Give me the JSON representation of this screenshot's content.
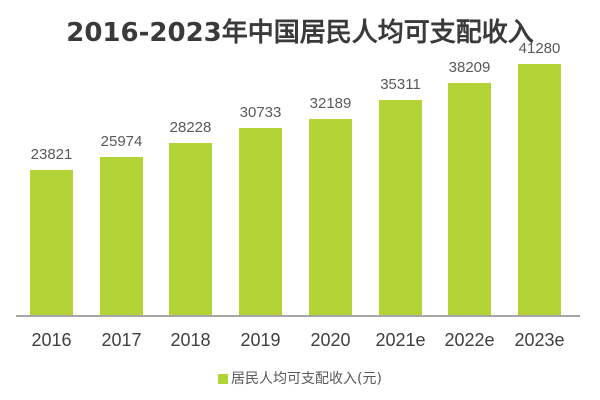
{
  "title": "2016-2023年中国居民人均可支配收入",
  "legend": {
    "label": "居民人均可支配收入(元)",
    "color": "#b2d235"
  },
  "chart_data": {
    "type": "bar",
    "title": "2016-2023年中国居民人均可支配收入",
    "categories": [
      "2016",
      "2017",
      "2018",
      "2019",
      "2020",
      "2021e",
      "2022e",
      "2023e"
    ],
    "series": [
      {
        "name": "居民人均可支配收入(元)",
        "values": [
          23821,
          25974,
          28228,
          30733,
          32189,
          35311,
          38209,
          41280
        ],
        "color": "#b2d235"
      }
    ],
    "xlabel": "",
    "ylabel": "",
    "ylim": [
      0,
      45000
    ],
    "grid": false,
    "legend_position": "bottom",
    "data_labels": true
  }
}
